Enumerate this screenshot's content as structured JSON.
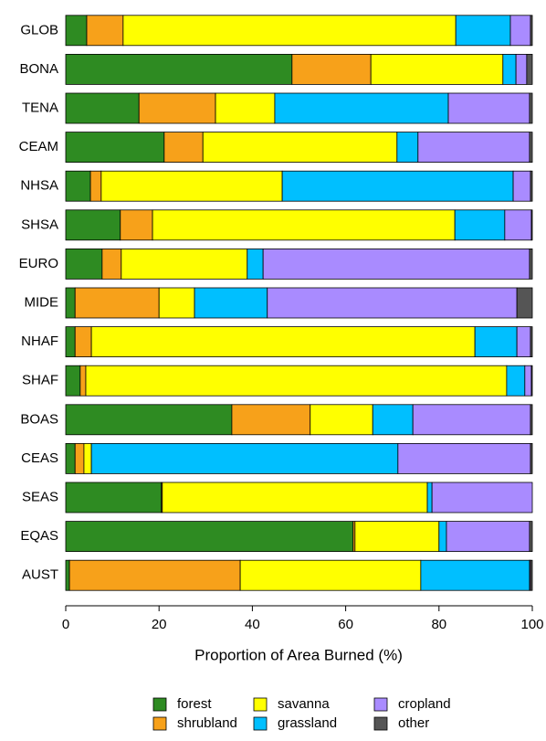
{
  "chart_data": {
    "type": "stacked-barh",
    "xlabel": "Proportion of Area Burned (%)",
    "categories": [
      "GLOB",
      "BONA",
      "TENA",
      "CEAM",
      "NHSA",
      "SHSA",
      "EURO",
      "MIDE",
      "NHAF",
      "SHAF",
      "BOAS",
      "CEAS",
      "SEAS",
      "EQAS",
      "AUST"
    ],
    "series": [
      {
        "name": "forest",
        "color": "#2e8b22",
        "values": [
          4.5,
          48.5,
          15.7,
          21.1,
          5.3,
          11.7,
          7.8,
          2,
          2,
          3.1,
          35.6,
          2,
          20.5,
          61.6,
          0.8
        ]
      },
      {
        "name": "shrubland",
        "color": "#f7a11a",
        "values": [
          7.8,
          16.9,
          16.4,
          8.3,
          2.3,
          6.9,
          4.1,
          18,
          3.5,
          1.2,
          16.8,
          1.9,
          0.2,
          0.4,
          36.6
        ]
      },
      {
        "name": "savanna",
        "color": "#ffff00",
        "values": [
          71.3,
          28.3,
          12.7,
          41.6,
          38.8,
          64.8,
          27,
          7.6,
          82.2,
          90.2,
          13.4,
          1.6,
          56.8,
          18,
          38.7
        ]
      },
      {
        "name": "grassland",
        "color": "#00bfff",
        "values": [
          11.7,
          2.8,
          37.2,
          4.5,
          49.5,
          10.7,
          3.4,
          15.6,
          9,
          3.9,
          8.6,
          65.7,
          1,
          1.6,
          23.3
        ]
      },
      {
        "name": "cropland",
        "color": "#a98bff",
        "values": [
          4.3,
          2.3,
          17.4,
          23.9,
          3.7,
          5.7,
          57.1,
          53.5,
          2.9,
          1.4,
          25.2,
          28.4,
          21.5,
          17.8,
          0.2
        ]
      },
      {
        "name": "other",
        "color": "#555555",
        "values": [
          0.4,
          1.2,
          0.6,
          0.6,
          0.4,
          0.2,
          0.6,
          3.3,
          0.4,
          0.2,
          0.4,
          0.4,
          0,
          0.6,
          0.4
        ]
      }
    ],
    "xlim": [
      0,
      100
    ],
    "xticks": [
      0,
      20,
      40,
      60,
      80,
      100
    ]
  }
}
